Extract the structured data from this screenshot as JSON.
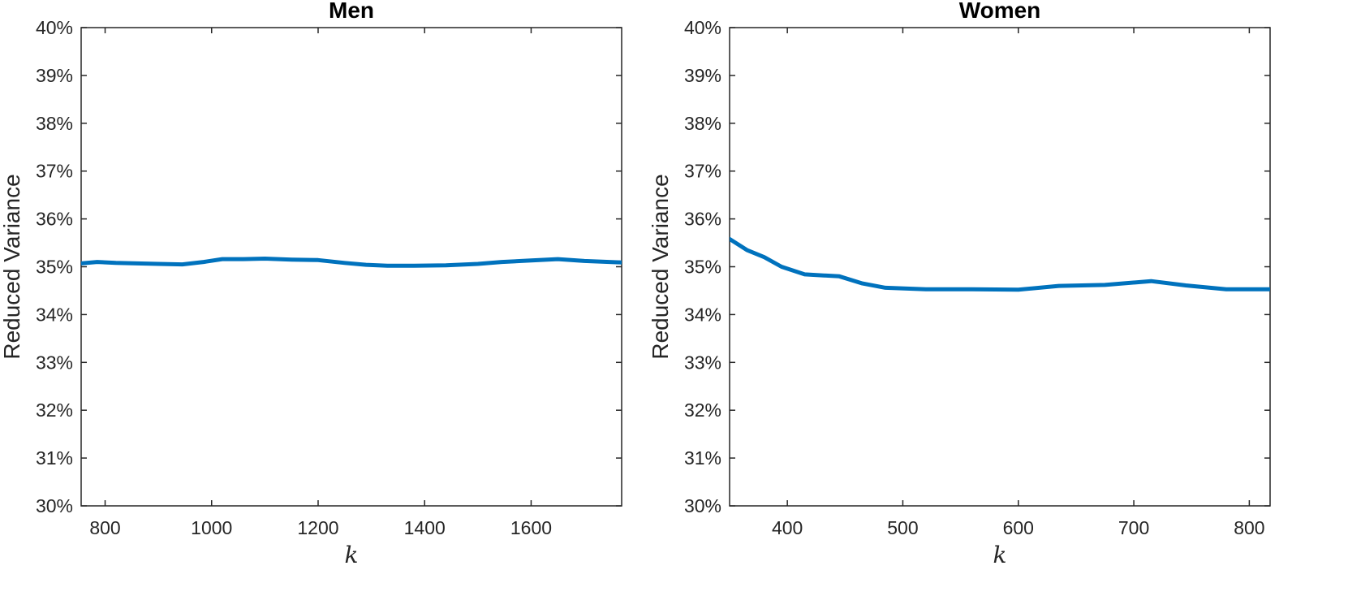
{
  "chart_data": [
    {
      "type": "line",
      "title": "Men",
      "xlabel": "k",
      "ylabel": "Reduced Variance",
      "xlim": [
        755,
        1770
      ],
      "ylim": [
        30,
        40
      ],
      "xticks": [
        800,
        1000,
        1200,
        1400,
        1600
      ],
      "yticks": [
        30,
        31,
        32,
        33,
        34,
        35,
        36,
        37,
        38,
        39,
        40
      ],
      "ytick_labels": [
        "30%",
        "31%",
        "32%",
        "33%",
        "34%",
        "35%",
        "36%",
        "37%",
        "38%",
        "39%",
        "40%"
      ],
      "grid": false,
      "color": "#0072BD",
      "series": [
        {
          "x": [
            755,
            785,
            820,
            860,
            900,
            945,
            985,
            1020,
            1060,
            1100,
            1150,
            1200,
            1250,
            1290,
            1330,
            1380,
            1440,
            1500,
            1545,
            1600,
            1650,
            1700,
            1770
          ],
          "values": [
            35.07,
            35.1,
            35.08,
            35.07,
            35.06,
            35.05,
            35.1,
            35.16,
            35.16,
            35.17,
            35.15,
            35.14,
            35.08,
            35.04,
            35.02,
            35.02,
            35.03,
            35.06,
            35.1,
            35.13,
            35.16,
            35.12,
            35.09
          ]
        }
      ]
    },
    {
      "type": "line",
      "title": "Women",
      "xlabel": "k",
      "ylabel": "Reduced Variance",
      "xlim": [
        350,
        818
      ],
      "ylim": [
        30,
        40
      ],
      "xticks": [
        400,
        500,
        600,
        700,
        800
      ],
      "yticks": [
        30,
        31,
        32,
        33,
        34,
        35,
        36,
        37,
        38,
        39,
        40
      ],
      "ytick_labels": [
        "30%",
        "31%",
        "32%",
        "33%",
        "34%",
        "35%",
        "36%",
        "37%",
        "38%",
        "39%",
        "40%"
      ],
      "grid": false,
      "color": "#0072BD",
      "series": [
        {
          "x": [
            350,
            365,
            380,
            395,
            415,
            445,
            465,
            485,
            520,
            560,
            600,
            635,
            675,
            715,
            745,
            780,
            818
          ],
          "values": [
            35.58,
            35.35,
            35.2,
            35.0,
            34.84,
            34.8,
            34.65,
            34.56,
            34.53,
            34.53,
            34.52,
            34.6,
            34.62,
            34.7,
            34.61,
            34.53,
            34.53
          ]
        }
      ]
    }
  ]
}
